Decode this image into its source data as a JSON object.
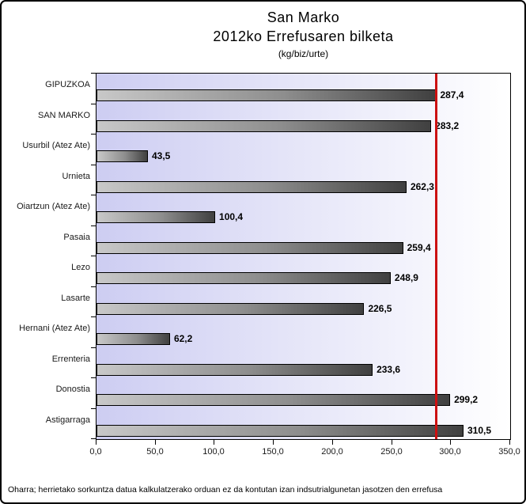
{
  "title": {
    "line1": "San Marko",
    "line2": "2012ko Errefusaren bilketa",
    "units": "(kg/biz/urte)"
  },
  "footer_note": "Oharra; herrietako sorkuntza datua kalkulatzerako orduan ez da kontutan izan indsutrialgunetan jasotzen den errefusa",
  "chart_data": {
    "type": "bar",
    "orientation": "horizontal",
    "title": "San Marko 2012ko Errefusaren bilketa",
    "units_label": "(kg/biz/urte)",
    "categories": [
      "GIPUZKOA",
      "SAN MARKO",
      "Usurbil (Atez Ate)",
      "Urnieta",
      "Oiartzun (Atez Ate)",
      "Pasaia",
      "Lezo",
      "Lasarte",
      "Hernani (Atez Ate)",
      "Errenteria",
      "Donostia",
      "Astigarraga"
    ],
    "values": [
      287.4,
      283.2,
      43.5,
      262.3,
      100.4,
      259.4,
      248.9,
      226.5,
      62.2,
      233.6,
      299.2,
      310.5
    ],
    "value_labels": [
      "287,4",
      "283,2",
      "43,5",
      "262,3",
      "100,4",
      "259,4",
      "248,9",
      "226,5",
      "62,2",
      "233,6",
      "299,2",
      "310,5"
    ],
    "xlim": [
      0,
      350
    ],
    "x_tick_values": [
      0,
      50,
      100,
      150,
      200,
      250,
      300,
      350
    ],
    "x_tick_labels": [
      "0,0",
      "50,0",
      "100,0",
      "150,0",
      "200,0",
      "250,0",
      "300,0",
      "350,0"
    ],
    "grid": false,
    "legend": false,
    "reference_line": {
      "value": 287.4,
      "color": "#cc1111"
    },
    "colors": {
      "bar_gradient_start": "#c8c8c8",
      "bar_gradient_end": "#404040",
      "bar_border": "#000000",
      "plot_bg_start": "#cdcdf2",
      "plot_bg_end": "#ffffff",
      "axis": "#000000"
    }
  }
}
